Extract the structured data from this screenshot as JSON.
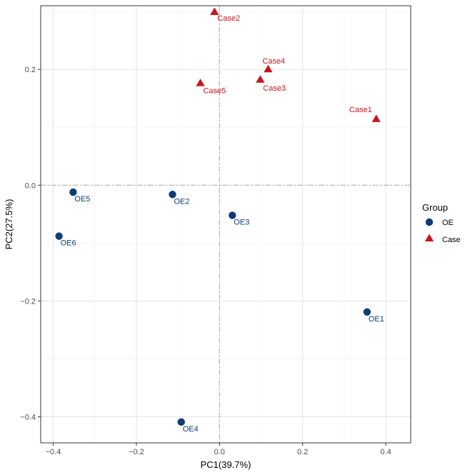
{
  "chart_data": {
    "type": "scatter",
    "xlabel": "PC1(39.7%)",
    "ylabel": "PC2(27.5%)",
    "xlim": [
      -0.43,
      0.46
    ],
    "ylim": [
      -0.445,
      0.31
    ],
    "xticks": [
      -0.4,
      -0.2,
      0.0,
      0.2,
      0.4
    ],
    "yticks": [
      -0.4,
      -0.2,
      0.0,
      0.2
    ],
    "xtick_labels": [
      "−0.4",
      "−0.2",
      "0.0",
      "0.2",
      "0.4"
    ],
    "ytick_labels": [
      "−0.4",
      "−0.2",
      "0.0",
      "0.2"
    ],
    "grid": true,
    "reference_lines": {
      "x": 0,
      "y": 0
    },
    "legend": {
      "title": "Group",
      "position": "right",
      "entries": [
        {
          "label": "OE",
          "shape": "circle",
          "color": "#0d3c78"
        },
        {
          "label": "Case",
          "shape": "triangle",
          "color": "#c8161d"
        }
      ]
    },
    "series": [
      {
        "name": "OE",
        "shape": "circle",
        "color": "#0d3c78",
        "points": [
          {
            "label": "OE1",
            "x": 0.355,
            "y": -0.219
          },
          {
            "label": "OE2",
            "x": -0.113,
            "y": -0.016
          },
          {
            "label": "OE3",
            "x": 0.031,
            "y": -0.052
          },
          {
            "label": "OE4",
            "x": -0.092,
            "y": -0.409
          },
          {
            "label": "OE5",
            "x": -0.352,
            "y": -0.012
          },
          {
            "label": "OE6",
            "x": -0.386,
            "y": -0.088
          }
        ]
      },
      {
        "name": "Case",
        "shape": "triangle",
        "color": "#c8161d",
        "points": [
          {
            "label": "Case1",
            "x": 0.377,
            "y": 0.114
          },
          {
            "label": "Case2",
            "x": -0.012,
            "y": 0.299
          },
          {
            "label": "Case3",
            "x": 0.098,
            "y": 0.182
          },
          {
            "label": "Case4",
            "x": 0.117,
            "y": 0.2
          },
          {
            "label": "Case5",
            "x": -0.046,
            "y": 0.176
          }
        ]
      }
    ]
  }
}
